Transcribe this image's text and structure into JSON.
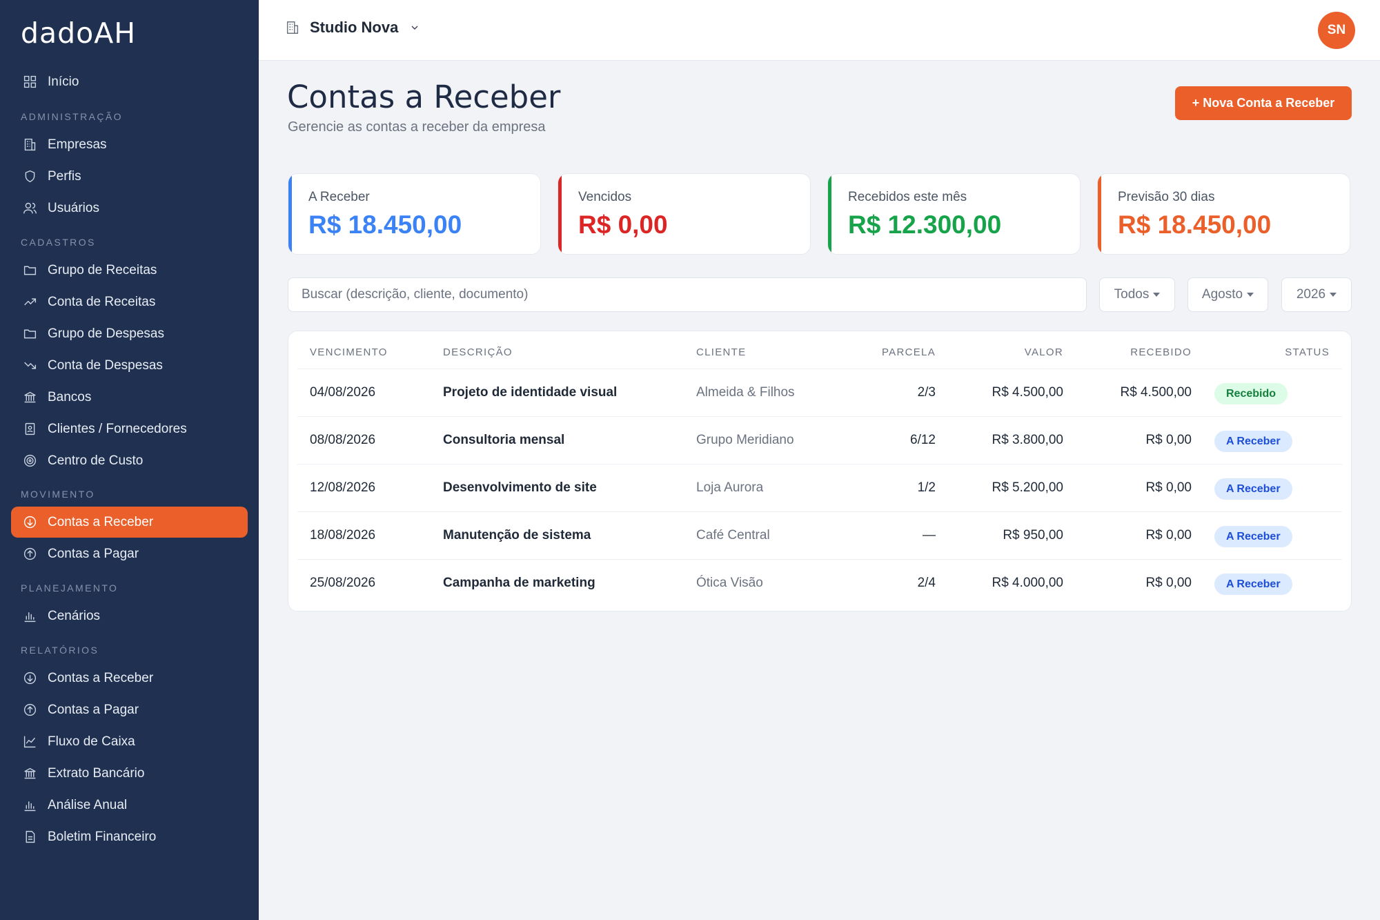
{
  "sidebar": {
    "logo": "dadoAH",
    "items": [
      {
        "label": "Início"
      },
      {
        "label": "Empresas"
      },
      {
        "label": "Perfis"
      },
      {
        "label": "Usuários"
      },
      {
        "label": "Grupo de Receitas"
      },
      {
        "label": "Conta de Receitas"
      },
      {
        "label": "Grupo de Despesas"
      },
      {
        "label": "Conta de Despesas"
      },
      {
        "label": "Bancos"
      },
      {
        "label": "Clientes / Fornecedores"
      },
      {
        "label": "Centro de Custo"
      },
      {
        "label": "Contas a Receber",
        "active": true
      },
      {
        "label": "Contas a Pagar"
      },
      {
        "label": "Cenários"
      },
      {
        "label": "Contas a Receber"
      },
      {
        "label": "Contas a Pagar"
      },
      {
        "label": "Fluxo de Caixa"
      },
      {
        "label": "Extrato Bancário"
      },
      {
        "label": "Análise Anual"
      },
      {
        "label": "Boletim Financeiro"
      }
    ],
    "sections": [
      "ADMINISTRAÇÃO",
      "CADASTROS",
      "MOVIMENTO",
      "PLANEJAMENTO",
      "RELATÓRIOS"
    ]
  },
  "topbar": {
    "company": "Studio Nova",
    "avatar_initials": "SN"
  },
  "header": {
    "title": "Contas a Receber",
    "subtitle": "Gerencie as contas a receber da empresa",
    "new_button": "+ Nova Conta a Receber"
  },
  "cards": [
    {
      "label": "A Receber",
      "value": "R$ 18.450,00",
      "color": "#3b82f6"
    },
    {
      "label": "Vencidos",
      "value": "R$ 0,00",
      "color": "#dc2626"
    },
    {
      "label": "Recebidos este mês",
      "value": "R$ 12.300,00",
      "color": "#16a34a"
    },
    {
      "label": "Previsão 30 dias",
      "value": "R$ 18.450,00",
      "color": "#ea5f2a"
    }
  ],
  "filters": {
    "search_placeholder": "Buscar (descrição, cliente, documento)",
    "status": "Todos",
    "month": "Agosto",
    "year": "2026"
  },
  "table": {
    "headers": [
      "VENCIMENTO",
      "DESCRIÇÃO",
      "CLIENTE",
      "PARCELA",
      "VALOR",
      "RECEBIDO",
      "STATUS"
    ],
    "rows": [
      {
        "vencimento": "04/08/2026",
        "descricao": "Projeto de identidade visual",
        "cliente": "Almeida & Filhos",
        "parcela": "2/3",
        "valor": "R$ 4.500,00",
        "recebido": "R$ 4.500,00",
        "status": "Recebido"
      },
      {
        "vencimento": "08/08/2026",
        "descricao": "Consultoria mensal",
        "cliente": "Grupo Meridiano",
        "parcela": "6/12",
        "valor": "R$ 3.800,00",
        "recebido": "R$ 0,00",
        "status": "A Receber"
      },
      {
        "vencimento": "12/08/2026",
        "descricao": "Desenvolvimento de site",
        "cliente": "Loja Aurora",
        "parcela": "1/2",
        "valor": "R$ 5.200,00",
        "recebido": "R$ 0,00",
        "status": "A Receber"
      },
      {
        "vencimento": "18/08/2026",
        "descricao": "Manutenção de sistema",
        "cliente": "Café Central",
        "parcela": "—",
        "valor": "R$ 950,00",
        "recebido": "R$ 0,00",
        "status": "A Receber"
      },
      {
        "vencimento": "25/08/2026",
        "descricao": "Campanha de marketing",
        "cliente": "Ótica Visão",
        "parcela": "2/4",
        "valor": "R$ 4.000,00",
        "recebido": "R$ 0,00",
        "status": "A Receber"
      }
    ]
  },
  "colors": {
    "sidebar_bg": "#1f3050",
    "accent": "#ea5f2a",
    "badge_received_bg": "#dcfce7",
    "badge_received_fg": "#15803d",
    "badge_pending_bg": "#dbeafe",
    "badge_pending_fg": "#1d4ed8"
  }
}
